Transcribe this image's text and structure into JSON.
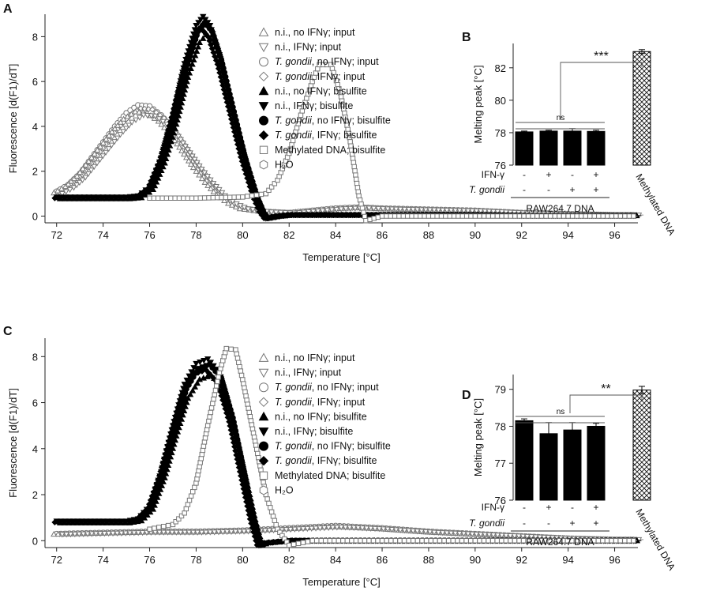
{
  "chart_data": [
    {
      "id": "A",
      "type": "line",
      "panel_label": "A",
      "xlabel": "Temperature [°C]",
      "ylabel": "Fluorescence [d(F1)/dT]",
      "xlim": [
        71.5,
        97
      ],
      "ylim": [
        -0.3,
        9
      ],
      "xticks": [
        72,
        74,
        76,
        78,
        80,
        82,
        84,
        86,
        88,
        90,
        92,
        94,
        96
      ],
      "yticks": [
        0,
        2,
        4,
        6,
        8
      ],
      "legend": [
        {
          "marker": "triangle-up-open",
          "pre": "",
          "italic": "",
          "post": "n.i., no IFNγ; input"
        },
        {
          "marker": "triangle-down-open",
          "pre": "",
          "italic": "",
          "post": "n.i., IFNγ; input"
        },
        {
          "marker": "circle-open",
          "pre": "",
          "italic": "T. gondii",
          "post": ", no IFNγ; input"
        },
        {
          "marker": "diamond-open",
          "pre": "",
          "italic": "T. gondii",
          "post": ", IFNγ; input"
        },
        {
          "marker": "triangle-up-filled",
          "pre": "",
          "italic": "",
          "post": "n.i., no IFNγ; bisulfite"
        },
        {
          "marker": "triangle-down-filled",
          "pre": "",
          "italic": "",
          "post": "n.i., IFNγ; bisulfite"
        },
        {
          "marker": "circle-filled",
          "pre": "",
          "italic": "T. gondii",
          "post": ", no IFNγ; bisulfite"
        },
        {
          "marker": "diamond-filled",
          "pre": "",
          "italic": "T. gondii",
          "post": ", IFNγ; bisulfite"
        },
        {
          "marker": "square-open",
          "pre": "",
          "italic": "",
          "post": "Methylated DNA; bisulfite"
        },
        {
          "marker": "hexagon-open",
          "pre": "",
          "italic": "",
          "post": "H₂O"
        }
      ],
      "series": [
        {
          "name": "input curves (n.i. / T. gondii, ± IFNγ)",
          "style": "open-grey",
          "points": [
            [
              72,
              1.1
            ],
            [
              72.5,
              1.4
            ],
            [
              73,
              1.9
            ],
            [
              73.5,
              2.6
            ],
            [
              74,
              3.3
            ],
            [
              74.5,
              4.0
            ],
            [
              75,
              4.6
            ],
            [
              75.5,
              4.95
            ],
            [
              76,
              4.9
            ],
            [
              76.5,
              4.5
            ],
            [
              77,
              3.9
            ],
            [
              77.5,
              3.1
            ],
            [
              78,
              2.3
            ],
            [
              78.5,
              1.6
            ],
            [
              79,
              1.0
            ],
            [
              79.5,
              0.6
            ],
            [
              80,
              0.35
            ],
            [
              81,
              0.2
            ],
            [
              82,
              0.15
            ],
            [
              83,
              0.25
            ],
            [
              84,
              0.35
            ],
            [
              85,
              0.4
            ],
            [
              86,
              0.35
            ],
            [
              88,
              0.3
            ],
            [
              90,
              0.25
            ],
            [
              92,
              0.15
            ],
            [
              94,
              0.1
            ],
            [
              96,
              0.05
            ],
            [
              97,
              0.05
            ]
          ]
        },
        {
          "name": "bisulfite curves (n.i. / T. gondii, ± IFNγ)",
          "style": "filled-black",
          "points": [
            [
              72,
              0.85
            ],
            [
              73,
              0.85
            ],
            [
              74,
              0.85
            ],
            [
              75,
              0.85
            ],
            [
              75.5,
              0.9
            ],
            [
              76,
              1.3
            ],
            [
              76.5,
              2.6
            ],
            [
              77,
              4.5
            ],
            [
              77.5,
              6.8
            ],
            [
              78,
              8.5
            ],
            [
              78.3,
              8.9
            ],
            [
              78.6,
              8.5
            ],
            [
              79,
              7.2
            ],
            [
              79.5,
              5.0
            ],
            [
              80,
              2.8
            ],
            [
              80.5,
              1.0
            ],
            [
              80.8,
              0.2
            ],
            [
              81,
              -0.1
            ],
            [
              81.5,
              0.0
            ],
            [
              82,
              0.05
            ],
            [
              84,
              0.05
            ],
            [
              86,
              0.05
            ],
            [
              88,
              0.05
            ],
            [
              90,
              0.05
            ],
            [
              92,
              0.02
            ],
            [
              94,
              0.02
            ],
            [
              96,
              0.02
            ],
            [
              97,
              0.02
            ]
          ]
        },
        {
          "name": "Methylated DNA; bisulfite",
          "style": "dashed-grey-square",
          "points": [
            [
              76,
              0.8
            ],
            [
              78,
              0.8
            ],
            [
              80,
              0.85
            ],
            [
              81,
              1.0
            ],
            [
              81.5,
              1.6
            ],
            [
              82,
              2.8
            ],
            [
              82.5,
              4.5
            ],
            [
              83,
              6.0
            ],
            [
              83.3,
              6.75
            ],
            [
              83.8,
              6.75
            ],
            [
              84.2,
              5.5
            ],
            [
              84.6,
              3.5
            ],
            [
              85,
              0.9
            ],
            [
              85.3,
              -0.2
            ],
            [
              86,
              0.0
            ],
            [
              88,
              0.0
            ],
            [
              90,
              0.0
            ],
            [
              94,
              0.0
            ],
            [
              97,
              0.0
            ]
          ]
        }
      ]
    },
    {
      "id": "B",
      "type": "bar",
      "panel_label": "B",
      "ylabel": "Melting peak [°C]",
      "ylim": [
        76,
        83.5
      ],
      "yticks": [
        76,
        78,
        80,
        82
      ],
      "categories": [
        "1",
        "2",
        "3",
        "4",
        "Methylated DNA"
      ],
      "values": [
        78.05,
        78.1,
        78.1,
        78.08,
        83.0
      ],
      "errors": [
        0.05,
        0.05,
        0.15,
        0.07,
        0.12
      ],
      "ifn_row": [
        "-",
        "+",
        "-",
        "+"
      ],
      "tg_row": [
        "-",
        "-",
        "+",
        "+"
      ],
      "row_label_ifn": "IFN-γ",
      "row_label_tg": "T. gondii",
      "group_label": "RAW264.7 DNA",
      "methylated_label": "Methylated DNA",
      "ns_label": "ns",
      "sig_label": "***"
    },
    {
      "id": "C",
      "type": "line",
      "panel_label": "C",
      "xlabel": "Temperature [°C]",
      "ylabel": "Fluorescence [d(F1)/dT]",
      "xlim": [
        71.5,
        97
      ],
      "ylim": [
        -0.3,
        8.8
      ],
      "xticks": [
        72,
        74,
        76,
        78,
        80,
        82,
        84,
        86,
        88,
        90,
        92,
        94,
        96
      ],
      "yticks": [
        0,
        2,
        4,
        6,
        8
      ],
      "legend": [
        {
          "marker": "triangle-up-open",
          "pre": "",
          "italic": "",
          "post": "n.i., no IFNγ; input"
        },
        {
          "marker": "triangle-down-open",
          "pre": "",
          "italic": "",
          "post": "n.i., IFNγ; input"
        },
        {
          "marker": "circle-open",
          "pre": "",
          "italic": "T. gondii",
          "post": ", no IFNγ; input"
        },
        {
          "marker": "diamond-open",
          "pre": "",
          "italic": "T. gondii",
          "post": ", IFNγ; input"
        },
        {
          "marker": "triangle-up-filled",
          "pre": "",
          "italic": "",
          "post": "n.i., no IFNγ; bisulfite"
        },
        {
          "marker": "triangle-down-filled",
          "pre": "",
          "italic": "",
          "post": "n.i., IFNγ; bisulfite"
        },
        {
          "marker": "circle-filled",
          "pre": "",
          "italic": "T. gondii",
          "post": ", no IFNγ; bisulfite"
        },
        {
          "marker": "diamond-filled",
          "pre": "",
          "italic": "T. gondii",
          "post": ", IFNγ; bisulfite"
        },
        {
          "marker": "square-open",
          "pre": "",
          "italic": "",
          "post": "Methylated DNA; bisulfite"
        },
        {
          "marker": "hexagon-open",
          "pre": "",
          "italic": "",
          "post": "H₂O"
        }
      ],
      "series": [
        {
          "name": "input curves (n.i. / T. gondii, ± IFNγ)",
          "style": "open-grey",
          "points": [
            [
              72,
              0.3
            ],
            [
              74,
              0.35
            ],
            [
              76,
              0.4
            ],
            [
              78,
              0.4
            ],
            [
              80,
              0.45
            ],
            [
              82,
              0.55
            ],
            [
              84,
              0.65
            ],
            [
              86,
              0.55
            ],
            [
              88,
              0.4
            ],
            [
              90,
              0.3
            ],
            [
              92,
              0.2
            ],
            [
              94,
              0.1
            ],
            [
              96,
              0.05
            ],
            [
              97,
              0.05
            ]
          ]
        },
        {
          "name": "bisulfite curves (n.i. / T. gondii, ± IFNγ)",
          "style": "filled-black",
          "points": [
            [
              72,
              0.85
            ],
            [
              74,
              0.85
            ],
            [
              75,
              0.85
            ],
            [
              75.5,
              0.95
            ],
            [
              76,
              1.5
            ],
            [
              76.5,
              3.0
            ],
            [
              77,
              5.0
            ],
            [
              77.5,
              6.8
            ],
            [
              78,
              7.7
            ],
            [
              78.5,
              7.9
            ],
            [
              79,
              7.3
            ],
            [
              79.5,
              5.5
            ],
            [
              80,
              3.0
            ],
            [
              80.4,
              1.0
            ],
            [
              80.7,
              -0.2
            ],
            [
              81,
              -0.1
            ],
            [
              82,
              0.0
            ],
            [
              84,
              0.0
            ],
            [
              88,
              0.0
            ],
            [
              92,
              0.0
            ],
            [
              97,
              0.0
            ]
          ]
        },
        {
          "name": "Methylated DNA; bisulfite",
          "style": "dashed-grey-square",
          "points": [
            [
              76,
              0.5
            ],
            [
              77,
              0.7
            ],
            [
              77.5,
              1.2
            ],
            [
              78,
              2.5
            ],
            [
              78.5,
              5.0
            ],
            [
              79,
              7.3
            ],
            [
              79.3,
              8.35
            ],
            [
              79.7,
              8.3
            ],
            [
              80,
              7.0
            ],
            [
              80.5,
              4.5
            ],
            [
              81,
              2.0
            ],
            [
              81.5,
              0.5
            ],
            [
              82,
              -0.2
            ],
            [
              83,
              0.0
            ],
            [
              86,
              0.0
            ],
            [
              90,
              0.0
            ],
            [
              97,
              0.0
            ]
          ]
        }
      ]
    },
    {
      "id": "D",
      "type": "bar",
      "panel_label": "D",
      "ylabel": "Melting peak [°C]",
      "ylim": [
        76,
        79.4
      ],
      "yticks": [
        76,
        77,
        78,
        79
      ],
      "categories": [
        "1",
        "2",
        "3",
        "4",
        "Methylated DNA"
      ],
      "values": [
        78.15,
        77.8,
        77.9,
        78.0,
        78.98
      ],
      "errors": [
        0.05,
        0.3,
        0.2,
        0.08,
        0.1
      ],
      "ifn_row": [
        "-",
        "+",
        "-",
        "+"
      ],
      "tg_row": [
        "-",
        "-",
        "+",
        "+"
      ],
      "row_label_ifn": "IFN-γ",
      "row_label_tg": "T. gondii",
      "group_label": "RAW264.7 DNA",
      "methylated_label": "Methylated DNA",
      "ns_label": "ns",
      "sig_label": "**"
    }
  ]
}
